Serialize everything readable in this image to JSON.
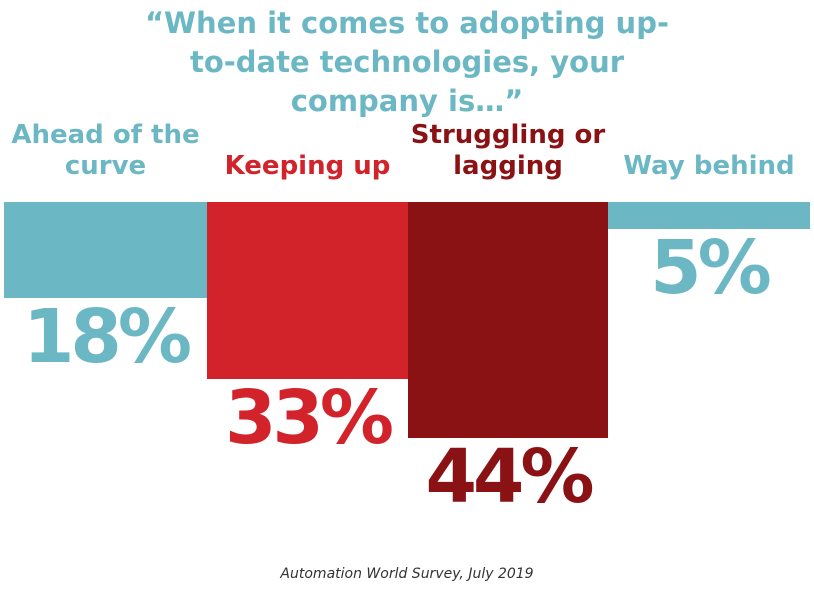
{
  "chart_data": {
    "type": "bar",
    "title": "“When it comes to adopting up-to-date technologies, your company is…”",
    "categories": [
      "Ahead of the curve",
      "Keeping up",
      "Struggling or lagging",
      "Way behind"
    ],
    "values": [
      18,
      33,
      44,
      5
    ],
    "value_labels": [
      "18%",
      "33%",
      "44%",
      "5%"
    ],
    "colors": [
      "#6bb8c4",
      "#d2232a",
      "#8b1214",
      "#6bb8c4"
    ],
    "source": "Automation World Survey, July 2019"
  }
}
